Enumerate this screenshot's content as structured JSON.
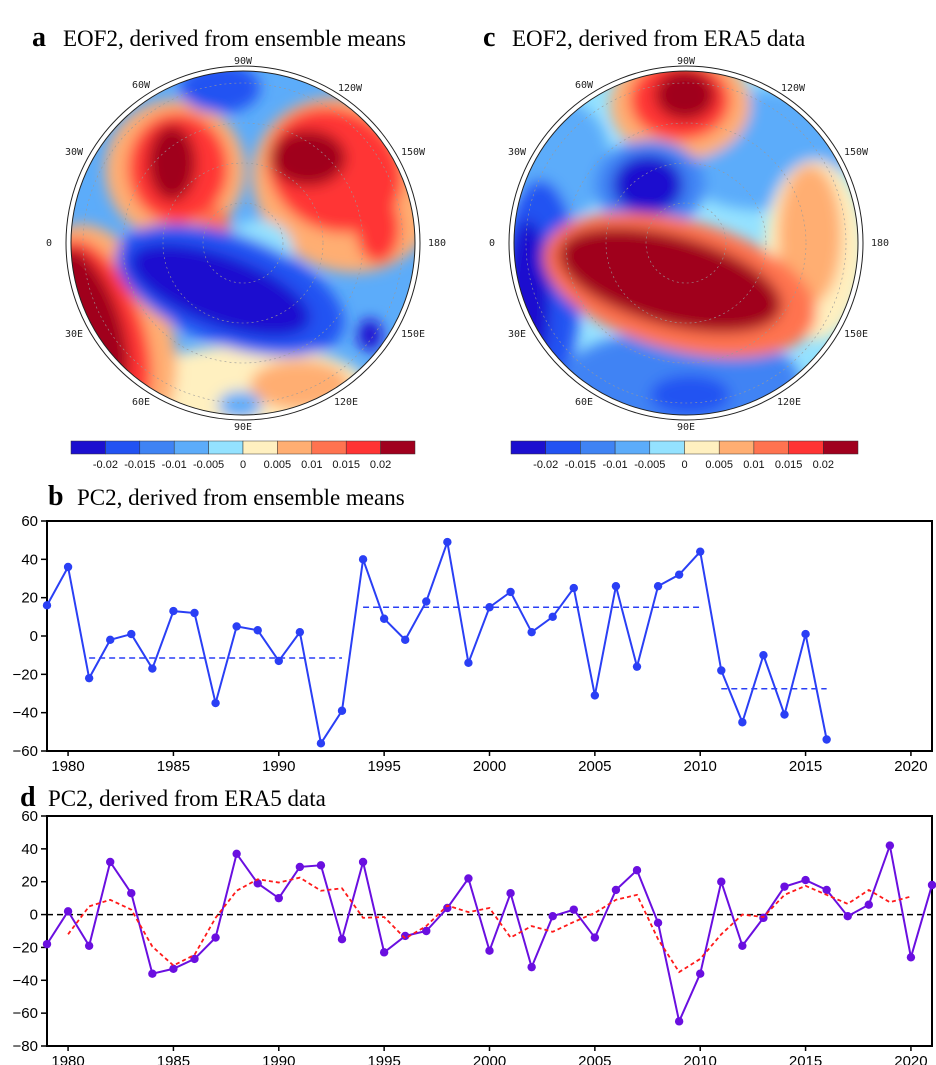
{
  "panels": {
    "a": {
      "letter": "a",
      "title": "EOF2, derived from ensemble means"
    },
    "b": {
      "letter": "b",
      "title": "PC2, derived from ensemble means"
    },
    "c": {
      "letter": "c",
      "title": "EOF2, derived from ERA5 data"
    },
    "d": {
      "letter": "d",
      "title": "PC2, derived from ERA5 data"
    }
  },
  "map_labels": {
    "n90w": "90W",
    "n60w": "60W",
    "n120w": "120W",
    "n30w": "30W",
    "n150w": "150W",
    "n0": "0",
    "n180": "180",
    "n30e": "30E",
    "n150e": "150E",
    "n60e": "60E",
    "n120e": "120E",
    "n90e": "90E"
  },
  "colorbar": {
    "colors": [
      "#1c0fcf",
      "#2252f2",
      "#3f83f4",
      "#5cacfa",
      "#94e2ff",
      "#fff0c0",
      "#ffae72",
      "#ff7350",
      "#ff3434",
      "#a0001e"
    ],
    "labels": [
      "-0.02",
      "-0.015",
      "-0.01",
      "-0.005",
      "0",
      "0.005",
      "0.01",
      "0.015",
      "0.02"
    ]
  },
  "chart_data": [
    {
      "type": "line",
      "title": "PC2, derived from ensemble means",
      "xlim": [
        1979,
        2021
      ],
      "ylim": [
        -60,
        60
      ],
      "xticks": [
        1980,
        1985,
        1990,
        1995,
        2000,
        2005,
        2010,
        2015,
        2020
      ],
      "yticks": [
        -60,
        -40,
        -20,
        0,
        20,
        40,
        60
      ],
      "series": [
        {
          "name": "PC2",
          "color": "#2a3ff5",
          "style": "solid-markers",
          "x": [
            1979,
            1980,
            1981,
            1982,
            1983,
            1984,
            1985,
            1986,
            1987,
            1988,
            1989,
            1990,
            1991,
            1992,
            1993,
            1994,
            1995,
            1996,
            1997,
            1998,
            1999,
            2000,
            2001,
            2002,
            2003,
            2004,
            2005,
            2006,
            2007,
            2008,
            2009,
            2010,
            2011,
            2012,
            2013,
            2014,
            2015,
            2016
          ],
          "values": [
            16,
            36,
            -22,
            -2,
            1,
            -17,
            13,
            12,
            -35,
            5,
            3,
            -13,
            2,
            -56,
            -39,
            40,
            9,
            -2,
            18,
            49,
            -14,
            15,
            23,
            2,
            10,
            25,
            -31,
            26,
            -16,
            26,
            32,
            44,
            -18,
            -45,
            -10,
            -41,
            1,
            -54
          ]
        }
      ],
      "segments": [
        {
          "name": "mean 1981-1993",
          "x": [
            1981,
            1993
          ],
          "value": -11.5,
          "color": "#2a3ff5"
        },
        {
          "name": "mean 1994-2010",
          "x": [
            1994,
            2010
          ],
          "value": 15,
          "color": "#2a3ff5"
        },
        {
          "name": "mean 2011-2016",
          "x": [
            2011,
            2016
          ],
          "value": -27.5,
          "color": "#2a3ff5"
        }
      ]
    },
    {
      "type": "line",
      "title": "PC2, derived from ERA5 data",
      "xlim": [
        1979,
        2021
      ],
      "ylim": [
        -80,
        60
      ],
      "xticks": [
        1980,
        1985,
        1990,
        1995,
        2000,
        2005,
        2010,
        2015,
        2020
      ],
      "yticks": [
        -80,
        -60,
        -40,
        -20,
        0,
        20,
        40,
        60
      ],
      "zero_line": true,
      "series": [
        {
          "name": "PC2",
          "color": "#6a0fe0",
          "style": "solid-markers",
          "x": [
            1979,
            1980,
            1981,
            1982,
            1983,
            1984,
            1985,
            1986,
            1987,
            1988,
            1989,
            1990,
            1991,
            1992,
            1993,
            1994,
            1995,
            1996,
            1997,
            1998,
            1999,
            2000,
            2001,
            2002,
            2003,
            2004,
            2005,
            2006,
            2007,
            2008,
            2009,
            2010,
            2011,
            2012,
            2013,
            2014,
            2015,
            2016,
            2017,
            2018,
            2019,
            2020,
            2021
          ],
          "values": [
            -18,
            2,
            -19,
            32,
            13,
            -36,
            -33,
            -27,
            -14,
            37,
            19,
            10,
            29,
            30,
            -15,
            32,
            -23,
            -13,
            -10,
            4,
            22,
            -22,
            13,
            -32,
            -1,
            3,
            -14,
            15,
            27,
            -5,
            -65,
            -36,
            20,
            -19,
            -2,
            17,
            21,
            15,
            -1,
            6,
            42,
            -26,
            18
          ]
        },
        {
          "name": "running mean",
          "color": "#ff1a1a",
          "style": "dashed",
          "x": [
            1980,
            1981,
            1982,
            1983,
            1984,
            1985,
            1986,
            1987,
            1988,
            1989,
            1990,
            1991,
            1992,
            1993,
            1994,
            1995,
            1996,
            1997,
            1998,
            1999,
            2000,
            2001,
            2002,
            2003,
            2004,
            2005,
            2006,
            2007,
            2008,
            2009,
            2010,
            2011,
            2012,
            2013,
            2014,
            2015,
            2016,
            2017,
            2018,
            2019,
            2020
          ],
          "values": [
            -12,
            5,
            9,
            3,
            -19.5,
            -31,
            -24.5,
            -2,
            14.5,
            21.5,
            19.5,
            22.5,
            14.5,
            16,
            -2,
            -1.5,
            -14.5,
            -7,
            5.5,
            1.5,
            4,
            -14,
            -7,
            -10.5,
            -4.5,
            1,
            9,
            12,
            -15,
            -35,
            -27,
            -12,
            0,
            -1.5,
            12,
            17.5,
            12,
            6.5,
            15,
            7.5,
            11
          ]
        }
      ]
    }
  ]
}
